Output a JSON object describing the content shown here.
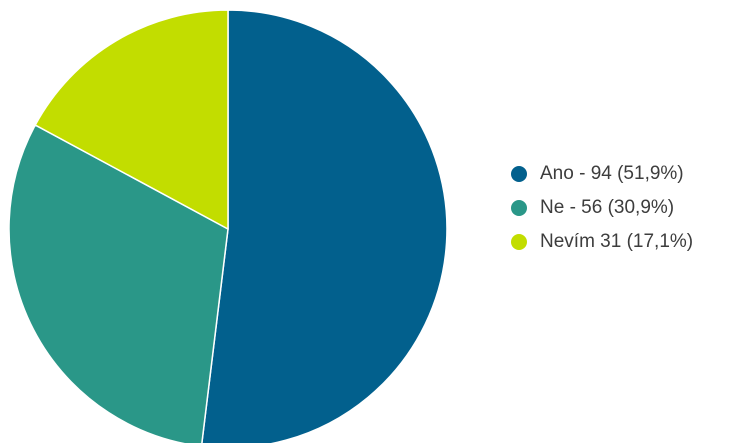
{
  "chart_data": {
    "type": "pie",
    "slices": [
      {
        "label": "Ano - 94 (51,9%)",
        "category": "Ano",
        "value": 94,
        "percent": 51.9,
        "color": "#02608d"
      },
      {
        "label": "Ne - 56 (30,9%)",
        "category": "Ne",
        "value": 56,
        "percent": 30.9,
        "color": "#2a9788"
      },
      {
        "label": "Nevím 31 (17,1%)",
        "category": "Nevím",
        "value": 31,
        "percent": 17.1,
        "color": "#c2dd00"
      }
    ],
    "legend_position": "right",
    "start_angle": "top",
    "direction": "clockwise"
  }
}
